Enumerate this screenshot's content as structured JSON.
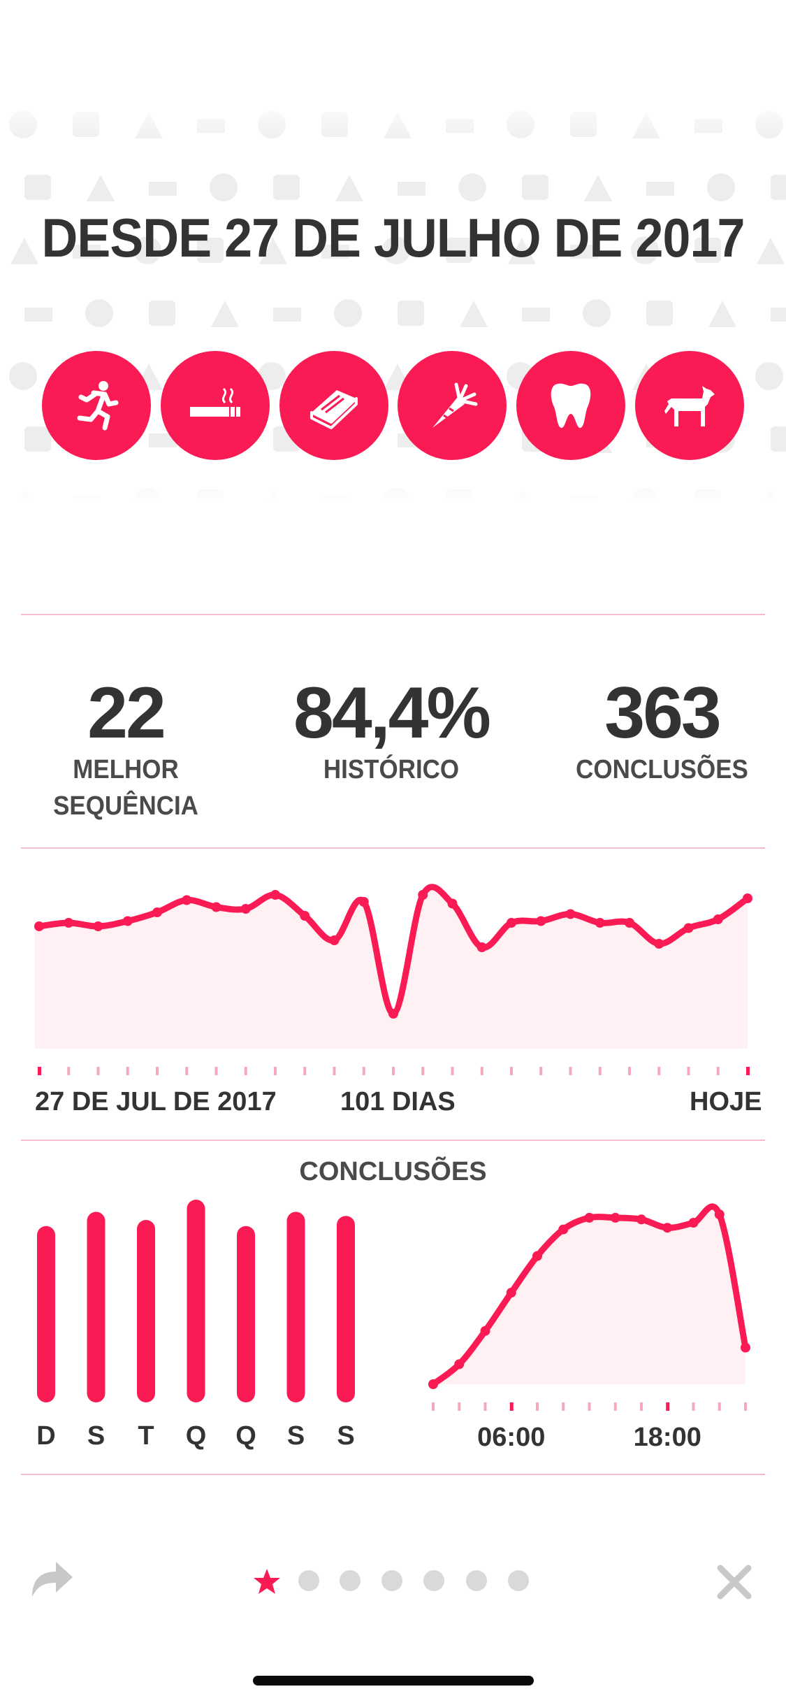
{
  "header": {
    "title": "DESDE 27 DE JULHO DE 2017"
  },
  "habits": [
    {
      "name": "running",
      "icon": "running-person-icon"
    },
    {
      "name": "no-smoking",
      "icon": "cigarette-icon"
    },
    {
      "name": "reading",
      "icon": "book-icon"
    },
    {
      "name": "vegetables",
      "icon": "carrot-icon"
    },
    {
      "name": "teeth",
      "icon": "tooth-icon"
    },
    {
      "name": "dog",
      "icon": "dog-icon"
    }
  ],
  "stats": {
    "best_streak": {
      "value": "22",
      "label_line1": "MELHOR",
      "label_line2": "SEQUÊNCIA"
    },
    "history": {
      "value": "84,4%",
      "label": "HISTÓRICO"
    },
    "completions": {
      "value": "363",
      "label": "CONCLUSÕES"
    }
  },
  "history_chart": {
    "start_label": "27 DE JUL DE 2017",
    "middle_label": "101 DIAS",
    "end_label": "HOJE"
  },
  "completions_section": {
    "title": "CONCLUSÕES"
  },
  "colors": {
    "accent": "#fa1a54",
    "fill": "#fff0f3",
    "divider": "#f7bccb",
    "text": "#333333",
    "icon_gray": "#c8c8c8"
  },
  "chart_data": [
    {
      "type": "line",
      "x": [
        0,
        1,
        2,
        3,
        4,
        5,
        6,
        7,
        8,
        9,
        10,
        11,
        12,
        13,
        14,
        15,
        16,
        17,
        18,
        19,
        20,
        21,
        22,
        23,
        24
      ],
      "values": [
        0.7,
        0.72,
        0.7,
        0.73,
        0.78,
        0.85,
        0.81,
        0.8,
        0.88,
        0.76,
        0.62,
        0.84,
        0.2,
        0.88,
        0.83,
        0.58,
        0.72,
        0.73,
        0.77,
        0.72,
        0.72,
        0.6,
        0.69,
        0.74,
        0.86
      ],
      "ylim": [
        0,
        1
      ],
      "grid": false
    },
    {
      "type": "bar",
      "categories": [
        "D",
        "S",
        "T",
        "Q",
        "Q",
        "S",
        "S"
      ],
      "values": [
        0.87,
        0.94,
        0.9,
        1.0,
        0.87,
        0.94,
        0.92
      ],
      "ylim": [
        0,
        1
      ]
    },
    {
      "type": "area",
      "x": [
        0,
        2,
        4,
        6,
        8,
        10,
        12,
        14,
        16,
        18,
        20,
        22,
        24
      ],
      "tick_labels": {
        "6": "06:00",
        "18": "18:00"
      },
      "values": [
        0.0,
        0.12,
        0.32,
        0.55,
        0.77,
        0.93,
        1.0,
        1.0,
        0.99,
        0.94,
        0.97,
        1.02,
        0.22
      ],
      "ylim": [
        0,
        1.05
      ]
    }
  ]
}
